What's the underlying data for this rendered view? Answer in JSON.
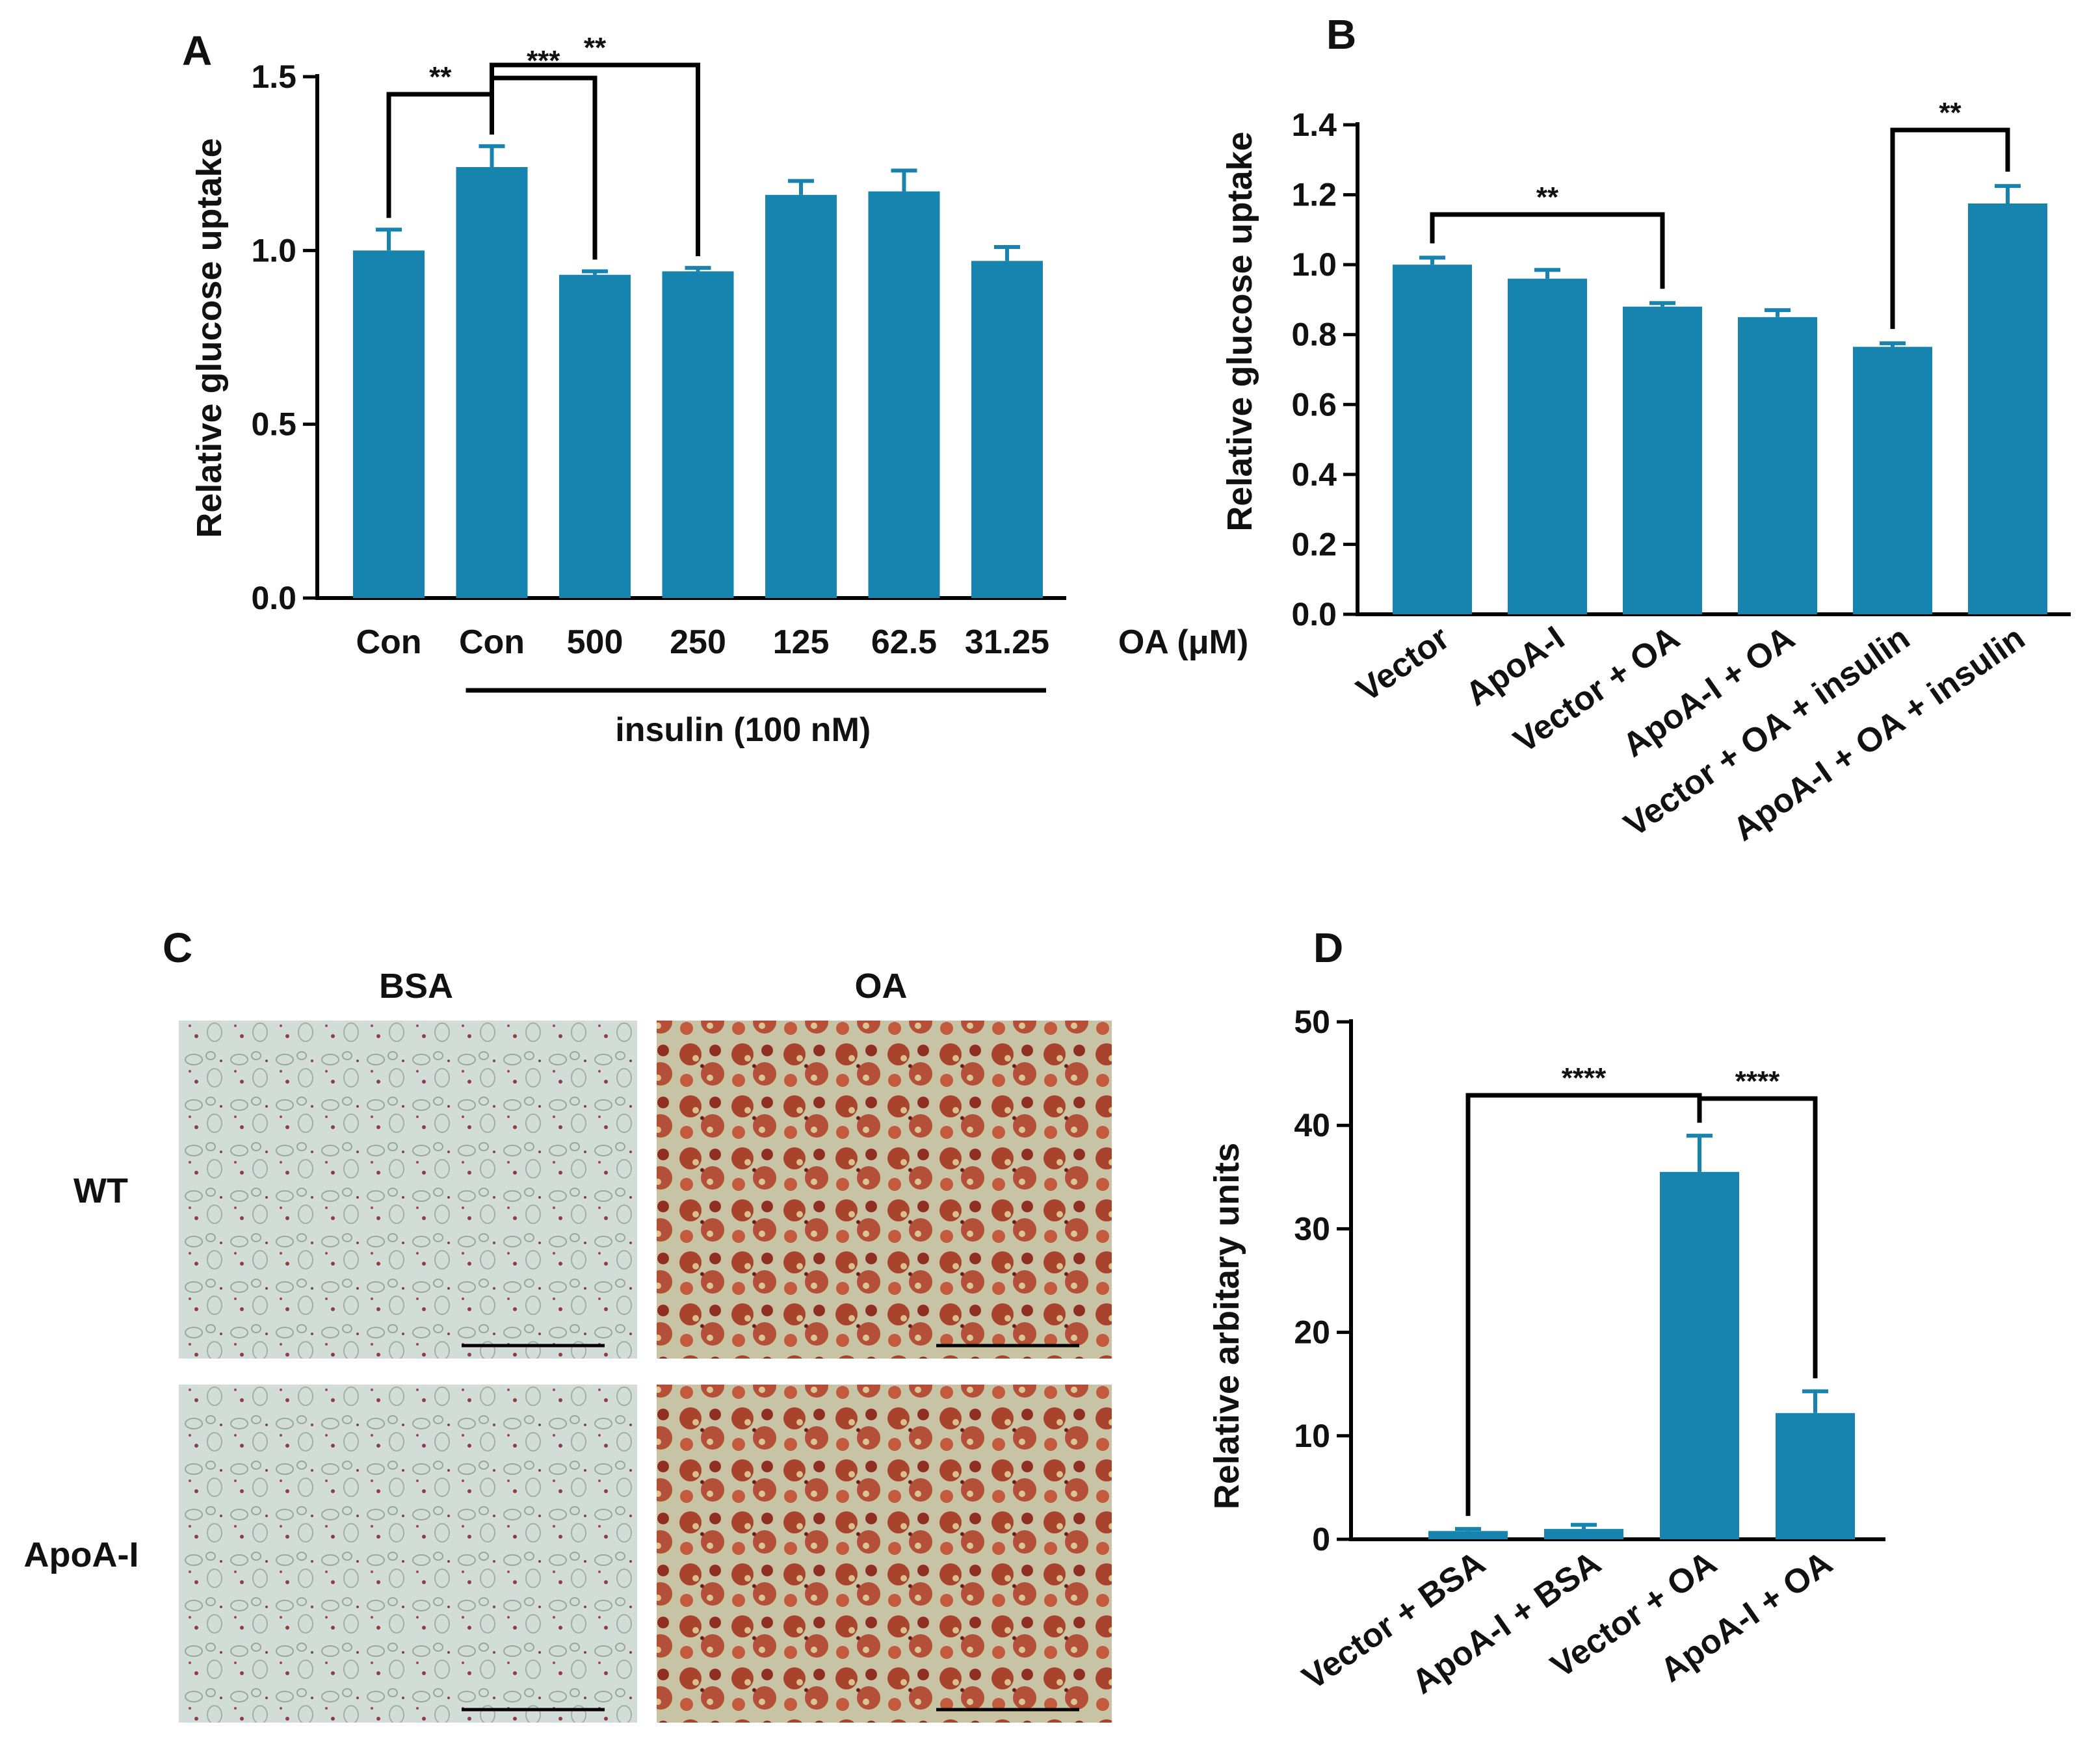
{
  "colors": {
    "bar": "#1784B0",
    "axis": "#000000",
    "text": "#111111"
  },
  "panels": {
    "A": {
      "letter": "A"
    },
    "B": {
      "letter": "B"
    },
    "C": {
      "letter": "C",
      "col_labels": [
        "BSA",
        "OA"
      ],
      "row_labels": [
        "WT",
        "ApoA-I"
      ]
    },
    "D": {
      "letter": "D"
    }
  },
  "chart_data": [
    {
      "id": "A",
      "type": "bar",
      "ylabel": "Relative glucose uptake",
      "ylim": [
        0,
        1.5
      ],
      "yticks": [
        0.0,
        0.5,
        1.0,
        1.5
      ],
      "ytick_labels": [
        "0.0",
        "0.5",
        "1.0",
        "1.5"
      ],
      "categories": [
        "Con",
        "Con",
        "500",
        "250",
        "125",
        "62.5",
        "31.25"
      ],
      "values": [
        1.0,
        1.24,
        0.93,
        0.94,
        1.16,
        1.17,
        0.97
      ],
      "errors": [
        0.06,
        0.06,
        0.01,
        0.01,
        0.04,
        0.06,
        0.04
      ],
      "x_suffix_label": "OA (μM)",
      "group_label": "insulin (100 nM)",
      "group_range": [
        1,
        6
      ],
      "significance": [
        {
          "from": 0,
          "to": 1,
          "label": "**"
        },
        {
          "from": 1,
          "to": 2,
          "label": "***"
        },
        {
          "from": 1,
          "to": 3,
          "label": "**"
        }
      ]
    },
    {
      "id": "B",
      "type": "bar",
      "ylabel": "Relative glucose uptake",
      "ylim": [
        0,
        1.4
      ],
      "yticks": [
        0.0,
        0.2,
        0.4,
        0.6,
        0.8,
        1.0,
        1.2,
        1.4
      ],
      "ytick_labels": [
        "0.0",
        "0.2",
        "0.4",
        "0.6",
        "0.8",
        "1.0",
        "1.2",
        "1.4"
      ],
      "categories": [
        "Vector",
        "ApoA-I",
        "Vector + OA",
        "ApoA-I + OA",
        "Vector + OA + insulin",
        "ApoA-I + OA + insulin"
      ],
      "values": [
        1.0,
        0.96,
        0.88,
        0.85,
        0.765,
        1.175
      ],
      "errors": [
        0.02,
        0.025,
        0.01,
        0.02,
        0.01,
        0.05
      ],
      "significance": [
        {
          "from": 0,
          "to": 2,
          "label": "**"
        },
        {
          "from": 4,
          "to": 5,
          "label": "**"
        }
      ]
    },
    {
      "id": "D",
      "type": "bar",
      "ylabel": "Relative arbitary units",
      "ylim": [
        0,
        50
      ],
      "yticks": [
        0,
        10,
        20,
        30,
        40,
        50
      ],
      "ytick_labels": [
        "0",
        "10",
        "20",
        "30",
        "40",
        "50"
      ],
      "categories": [
        "Vector + BSA",
        "ApoA-I + BSA",
        "Vector + OA",
        "ApoA-I + OA"
      ],
      "values": [
        0.8,
        1.0,
        35.5,
        12.2
      ],
      "errors": [
        0.2,
        0.4,
        3.5,
        2.1
      ],
      "significance": [
        {
          "from": 0,
          "to": 2,
          "label": "****"
        },
        {
          "from": 2,
          "to": 3,
          "label": "****"
        }
      ]
    }
  ]
}
